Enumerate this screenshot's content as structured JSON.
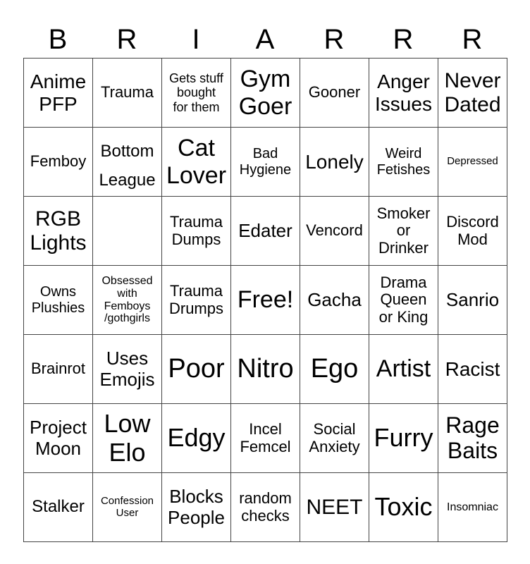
{
  "header": [
    "B",
    "R",
    "I",
    "A",
    "R",
    "R",
    "R"
  ],
  "cells": [
    [
      "Anime\nPFP",
      "Trauma",
      "Gets stuff\nbought\nfor them",
      "Gym\nGoer",
      "Gooner",
      "Anger\nIssues",
      "Never\nDated"
    ],
    [
      "Femboy",
      "Bottom\nLeague",
      "Cat\nLover",
      "Bad\nHygiene",
      "Lonely",
      "Weird\nFetishes",
      "Depressed"
    ],
    [
      "RGB\nLights",
      "",
      "Trauma\nDumps",
      "Edater",
      "Vencord",
      "Smoker\nor\nDrinker",
      "Discord\nMod"
    ],
    [
      "Owns\nPlushies",
      "Obsessed\nwith\nFemboys\n/gothgirls",
      "Trauma\nDrumps",
      "Free!",
      "Gacha",
      "Drama\nQueen\nor King",
      "Sanrio"
    ],
    [
      "Brainrot",
      "Uses\nEmojis",
      "Poor",
      "Nitro",
      "Ego",
      "Artist",
      "Racist"
    ],
    [
      "Project\nMoon",
      "Low\nElo",
      "Edgy",
      "Incel\nFemcel",
      "Social\nAnxiety",
      "Furry",
      "Rage\nBaits"
    ],
    [
      "Stalker",
      "Confession\nUser",
      "Blocks\nPeople",
      "random\nchecks",
      "NEET",
      "Toxic",
      "Insomniac"
    ]
  ]
}
